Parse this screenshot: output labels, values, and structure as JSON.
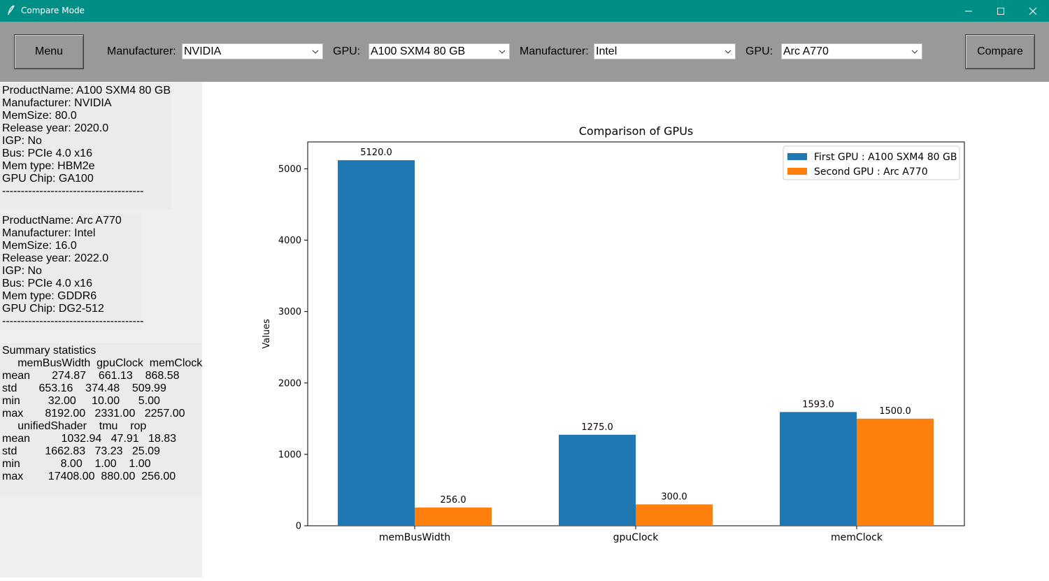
{
  "window": {
    "title": "Compare Mode"
  },
  "toolbar": {
    "menu_label": "Menu",
    "compare_label": "Compare",
    "manufacturer1_label": "Manufacturer:",
    "manufacturer1_value": "NVIDIA",
    "gpu1_label": "GPU:",
    "gpu1_value": "A100 SXM4 80 GB",
    "manufacturer2_label": "Manufacturer:",
    "manufacturer2_value": "Intel",
    "gpu2_label": "GPU:",
    "gpu2_value": "Arc A770"
  },
  "info": {
    "gpu1_lines": [
      "ProductName: A100 SXM4 80 GB",
      "Manufacturer: NVIDIA",
      "MemSize: 80.0",
      "Release year: 2020.0",
      "IGP: No",
      "Bus: PCIe 4.0 x16",
      "Mem type: HBM2e",
      "GPU Chip: GA100",
      "--------------------------------------"
    ],
    "gpu2_lines": [
      "ProductName: Arc A770",
      "Manufacturer: Intel",
      "MemSize: 16.0",
      "Release year: 2022.0",
      "IGP: No",
      "Bus: PCIe 4.0 x16",
      "Mem type: GDDR6",
      "GPU Chip: DG2-512",
      "--------------------------------------"
    ],
    "summary_lines": [
      "Summary statistics",
      "     memBusWidth  gpuClock  memClock",
      "mean       274.87    661.13    868.58",
      "std       653.16    374.48    509.99",
      "min         32.00     10.00      5.00",
      "max       8192.00   2331.00   2257.00",
      "     unifiedShader    tmu    rop",
      "mean          1032.94   47.91   18.83",
      "std         1662.83   73.23   25.09",
      "min             8.00    1.00    1.00",
      "max        17408.00  880.00  256.00"
    ]
  },
  "chart_data": {
    "type": "bar",
    "title": "Comparison of GPUs",
    "xlabel": "",
    "ylabel": "Values",
    "categories": [
      "memBusWidth",
      "gpuClock",
      "memClock"
    ],
    "series": [
      {
        "name": "First GPU : A100 SXM4 80 GB",
        "values": [
          5120.0,
          1275.0,
          1593.0
        ],
        "color": "#1f77b4"
      },
      {
        "name": "Second GPU : Arc A770",
        "values": [
          256.0,
          300.0,
          1500.0
        ],
        "color": "#ff7f0e"
      }
    ],
    "data_labels": [
      [
        "5120.0",
        "1275.0",
        "1593.0"
      ],
      [
        "256.0",
        "300.0",
        "1500.0"
      ]
    ],
    "yticks": [
      0,
      1000,
      2000,
      3000,
      4000,
      5000
    ],
    "ylim": [
      0,
      5376
    ],
    "grid": false,
    "legend_position": "upper right"
  },
  "colors": {
    "titlebar": "#008f87",
    "toolbar": "#999999",
    "panel": "#f0f0f0"
  }
}
